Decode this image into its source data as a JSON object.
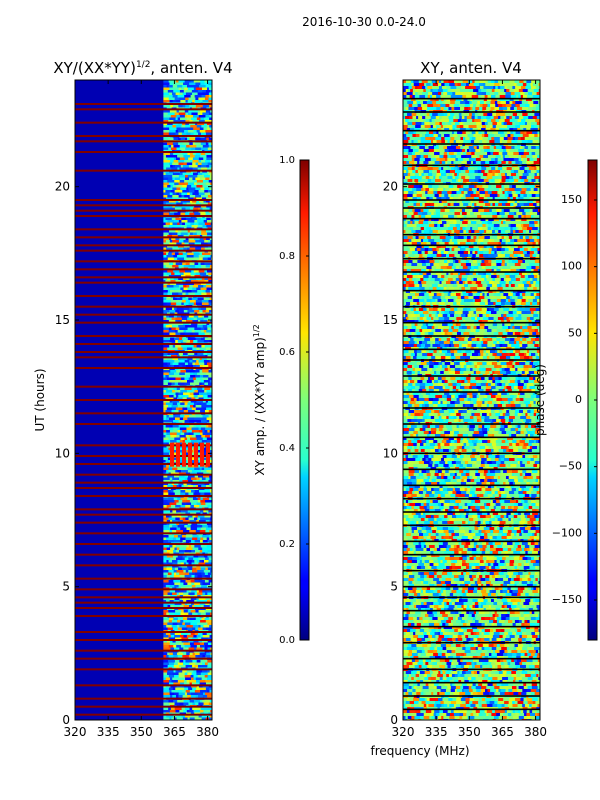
{
  "figure": {
    "suptitle": "2016-10-30 0.0-24.0",
    "xlabel": "frequency (MHz)"
  },
  "chart_data": [
    {
      "type": "heatmap",
      "title_main": "XY/(XX*YY)",
      "title_exp": "1/2",
      "title_tail": ", anten. V4",
      "xlabel": "",
      "ylabel": "UT (hours)",
      "xlim": [
        320,
        382
      ],
      "ylim": [
        0,
        24
      ],
      "xticks": [
        320,
        335,
        350,
        365,
        380
      ],
      "yticks": [
        0,
        5,
        10,
        15,
        20
      ],
      "colorbar": {
        "label_main": "XY amp. / (XX*YY amp)",
        "label_exp": "1/2",
        "vmin": 0.0,
        "vmax": 1.0,
        "ticks": [
          "0.0",
          "0.2",
          "0.4",
          "0.6",
          "0.8",
          "1.0"
        ],
        "tick_values": [
          0.0,
          0.2,
          0.4,
          0.6,
          0.8,
          1.0
        ]
      },
      "pattern": {
        "background_value": 0.05,
        "band_freq_start": 360,
        "red_line_value": 1.0,
        "red_line_hours": [
          23.1,
          22.9,
          22.4,
          21.9,
          21.7,
          21.3,
          20.6,
          19.5,
          19.3,
          19.1,
          18.9,
          18.4,
          18.1,
          17.8,
          17.6,
          17.2,
          16.9,
          16.6,
          16.4,
          15.9,
          15.5,
          15.2,
          14.9,
          14.4,
          14.1,
          13.8,
          13.6,
          13.2,
          12.5,
          12.0,
          11.5,
          11.1,
          10.3,
          9.9,
          9.6,
          9.2,
          8.9,
          8.7,
          8.4,
          7.9,
          7.7,
          7.4,
          7.0,
          6.6,
          6.2,
          5.8,
          5.3,
          4.9,
          4.6,
          4.4,
          4.2,
          3.9,
          3.3,
          3.0,
          2.6,
          2.3,
          1.9,
          1.3,
          0.8,
          0.5,
          0.2
        ],
        "hot_block": {
          "hours": [
            9.5,
            10.4
          ],
          "freq": [
            363,
            380
          ],
          "value": 0.85
        }
      }
    },
    {
      "type": "heatmap",
      "title_main": "XY, anten. V4",
      "title_exp": "",
      "title_tail": "",
      "xlabel": "frequency (MHz)",
      "ylabel": "",
      "xlim": [
        320,
        382
      ],
      "ylim": [
        0,
        24
      ],
      "xticks": [
        320,
        335,
        350,
        365,
        380
      ],
      "yticks": [
        0,
        5,
        10,
        15,
        20
      ],
      "colorbar": {
        "label_main": "phase (deg)",
        "label_exp": "",
        "vmin": -180,
        "vmax": 180,
        "ticks": [
          "−150",
          "−100",
          "−50",
          "0",
          "50",
          "100",
          "150"
        ],
        "tick_values": [
          -150,
          -100,
          -50,
          0,
          50,
          100,
          150
        ]
      },
      "pattern": {
        "black_line_hours": [
          23.3,
          22.8,
          22.1,
          21.6,
          20.8,
          20.1,
          19.5,
          19.2,
          18.8,
          18.2,
          17.8,
          17.3,
          16.8,
          16.1,
          15.5,
          14.9,
          14.4,
          13.9,
          13.5,
          12.9,
          12.3,
          11.7,
          11.1,
          10.6,
          10.0,
          9.4,
          8.8,
          8.3,
          7.8,
          7.3,
          6.7,
          6.2,
          5.6,
          5.0,
          4.6,
          4.1,
          3.5,
          2.9,
          2.3,
          1.9,
          1.4,
          0.9,
          0.4
        ]
      }
    }
  ]
}
